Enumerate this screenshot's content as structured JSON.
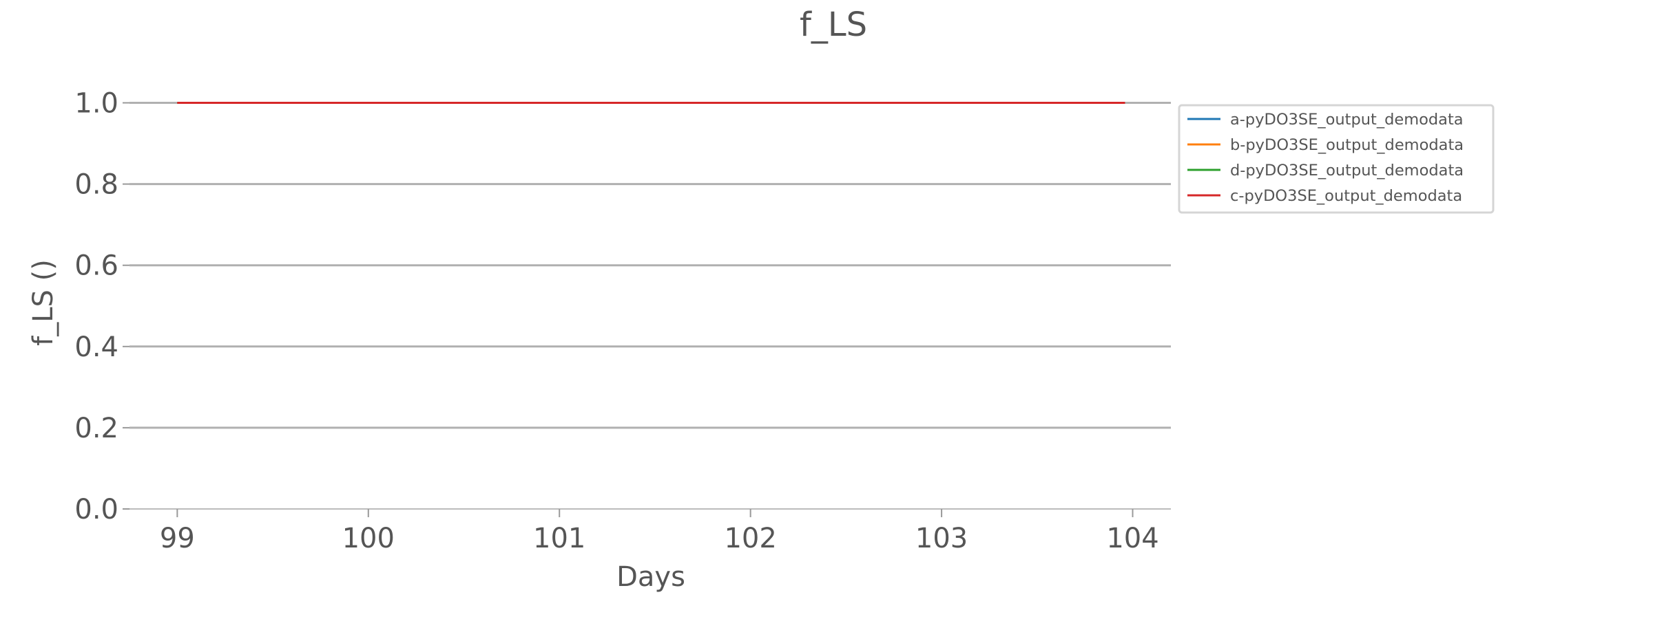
{
  "chart_data": {
    "type": "line",
    "title": "f_LS",
    "xlabel": "Days",
    "ylabel": "f_LS ()",
    "xlim": [
      98.75,
      104.2
    ],
    "ylim": [
      0.0,
      1.05
    ],
    "xticks": [
      99,
      100,
      101,
      102,
      103,
      104
    ],
    "xtick_labels": [
      "99",
      "100",
      "101",
      "102",
      "103",
      "104"
    ],
    "yticks": [
      0.0,
      0.2,
      0.4,
      0.6,
      0.8,
      1.0
    ],
    "ytick_labels": [
      "0.0",
      "0.2",
      "0.4",
      "0.6",
      "0.8",
      "1.0"
    ],
    "grid": "horizontal",
    "legend_position": "outside-right-top",
    "series": [
      {
        "name": "a-pyDO3SE_output_demodata",
        "color": "#1f77b4",
        "x": [
          99.0,
          103.96
        ],
        "y": [
          1.0,
          1.0
        ]
      },
      {
        "name": "b-pyDO3SE_output_demodata",
        "color": "#ff7f0e",
        "x": [
          99.0,
          103.96
        ],
        "y": [
          1.0,
          1.0
        ]
      },
      {
        "name": "d-pyDO3SE_output_demodata",
        "color": "#2ca02c",
        "x": [
          99.0,
          103.96
        ],
        "y": [
          1.0,
          1.0
        ]
      },
      {
        "name": "c-pyDO3SE_output_demodata",
        "color": "#d62728",
        "x": [
          99.0,
          103.96
        ],
        "y": [
          1.0,
          1.0
        ]
      }
    ]
  }
}
